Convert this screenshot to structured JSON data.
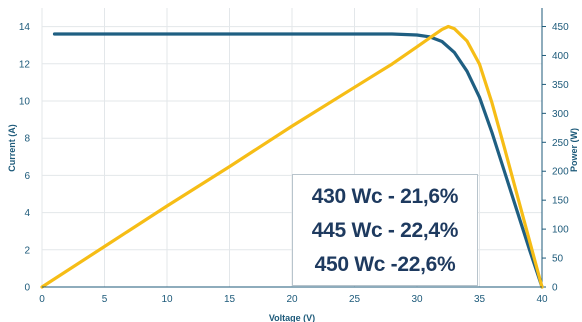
{
  "chart_data": {
    "type": "line",
    "xlabel": "Voltage (V)",
    "ylabel": "Current (A)",
    "y2label": "Power (W)",
    "xlim": [
      0,
      40
    ],
    "ylim": [
      0,
      15
    ],
    "y2lim": [
      0,
      482
    ],
    "x_ticks": [
      "0",
      "5",
      "10",
      "15",
      "20",
      "25",
      "30",
      "35",
      "40"
    ],
    "y_ticks": [
      "0",
      "2",
      "4",
      "6",
      "8",
      "10",
      "12",
      "14"
    ],
    "y2_ticks": [
      "0",
      "50",
      "100",
      "150",
      "200",
      "250",
      "300",
      "350",
      "400",
      "450"
    ],
    "grid": true,
    "colors": {
      "current": "#1f5f82",
      "power": "#f6bd16",
      "axis_text": "#1d5a7a"
    },
    "series": [
      {
        "axis": "left",
        "x": [
          1,
          5,
          10,
          15,
          20,
          25,
          28,
          30,
          31,
          32,
          33,
          34,
          35,
          36,
          37,
          38,
          39,
          40
        ],
        "values": [
          13.6,
          13.6,
          13.6,
          13.6,
          13.6,
          13.6,
          13.6,
          13.55,
          13.45,
          13.2,
          12.6,
          11.6,
          10.2,
          8.3,
          6.2,
          4.1,
          2.0,
          0
        ]
      },
      {
        "axis": "right",
        "x": [
          0,
          5,
          10,
          15,
          20,
          25,
          28,
          30,
          31,
          32,
          32.5,
          33,
          34,
          35,
          36,
          37,
          38,
          39,
          40
        ],
        "values": [
          0,
          70,
          140,
          208,
          278,
          345,
          385,
          415,
          430,
          445,
          450,
          446,
          425,
          385,
          318,
          240,
          160,
          80,
          0
        ]
      }
    ]
  },
  "annotation": {
    "lines": [
      "430 Wc - 21,6%",
      "445 Wc - 22,4%",
      "450 Wc -22,6%"
    ]
  }
}
